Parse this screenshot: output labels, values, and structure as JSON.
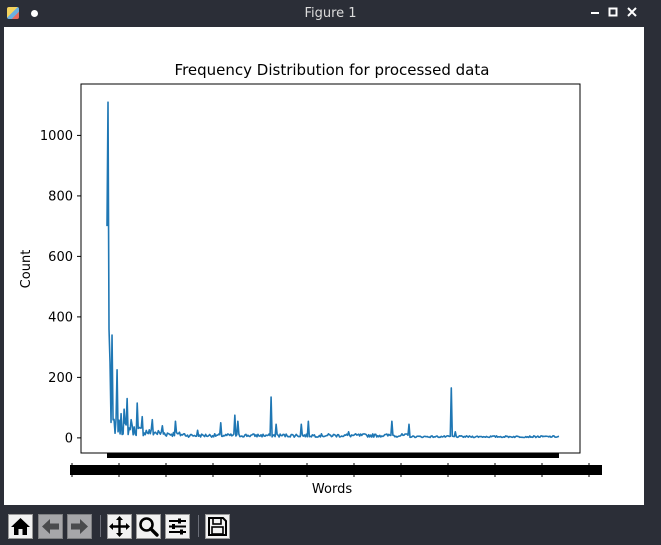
{
  "window": {
    "title": "Figure 1",
    "buttons": [
      "minimize",
      "maximize",
      "close"
    ]
  },
  "toolbar": {
    "buttons": [
      {
        "name": "home",
        "icon": "home-icon",
        "enabled": true
      },
      {
        "name": "back",
        "icon": "arrow-left-icon",
        "enabled": false
      },
      {
        "name": "forward",
        "icon": "arrow-right-icon",
        "enabled": false
      },
      {
        "name": "pan",
        "icon": "move-icon",
        "enabled": true
      },
      {
        "name": "zoom",
        "icon": "magnifier-icon",
        "enabled": true
      },
      {
        "name": "configure-subplots",
        "icon": "sliders-icon",
        "enabled": true
      },
      {
        "name": "save",
        "icon": "floppy-disk-icon",
        "enabled": true
      }
    ]
  },
  "chart_data": {
    "type": "line",
    "title": "Frequency Distribution for processed data",
    "xlabel": "Words",
    "ylabel": "Count",
    "ylim": [
      -50,
      1170
    ],
    "yticks": [
      0,
      200,
      400,
      600,
      800,
      1000
    ],
    "ytick_labels": [
      "0",
      "200",
      "400",
      "600",
      "800",
      "1000"
    ],
    "xtick_labels_note": "",
    "color": "#1f77b4",
    "series": [
      {
        "name": "",
        "n_points": 450,
        "spikes": [
          {
            "x": 0,
            "y": 700
          },
          {
            "x": 1,
            "y": 1110
          },
          {
            "x": 2,
            "y": 360
          },
          {
            "x": 3,
            "y": 250
          },
          {
            "x": 5,
            "y": 340
          },
          {
            "x": 10,
            "y": 225
          },
          {
            "x": 14,
            "y": 80
          },
          {
            "x": 17,
            "y": 95
          },
          {
            "x": 20,
            "y": 130
          },
          {
            "x": 24,
            "y": 60
          },
          {
            "x": 30,
            "y": 115
          },
          {
            "x": 35,
            "y": 70
          },
          {
            "x": 45,
            "y": 60
          },
          {
            "x": 55,
            "y": 40
          },
          {
            "x": 68,
            "y": 55
          },
          {
            "x": 90,
            "y": 25
          },
          {
            "x": 113,
            "y": 50
          },
          {
            "x": 127,
            "y": 75
          },
          {
            "x": 130,
            "y": 55
          },
          {
            "x": 163,
            "y": 135
          },
          {
            "x": 168,
            "y": 45
          },
          {
            "x": 193,
            "y": 45
          },
          {
            "x": 200,
            "y": 55
          },
          {
            "x": 240,
            "y": 20
          },
          {
            "x": 283,
            "y": 55
          },
          {
            "x": 300,
            "y": 45
          },
          {
            "x": 342,
            "y": 165
          },
          {
            "x": 346,
            "y": 20
          }
        ]
      }
    ]
  }
}
